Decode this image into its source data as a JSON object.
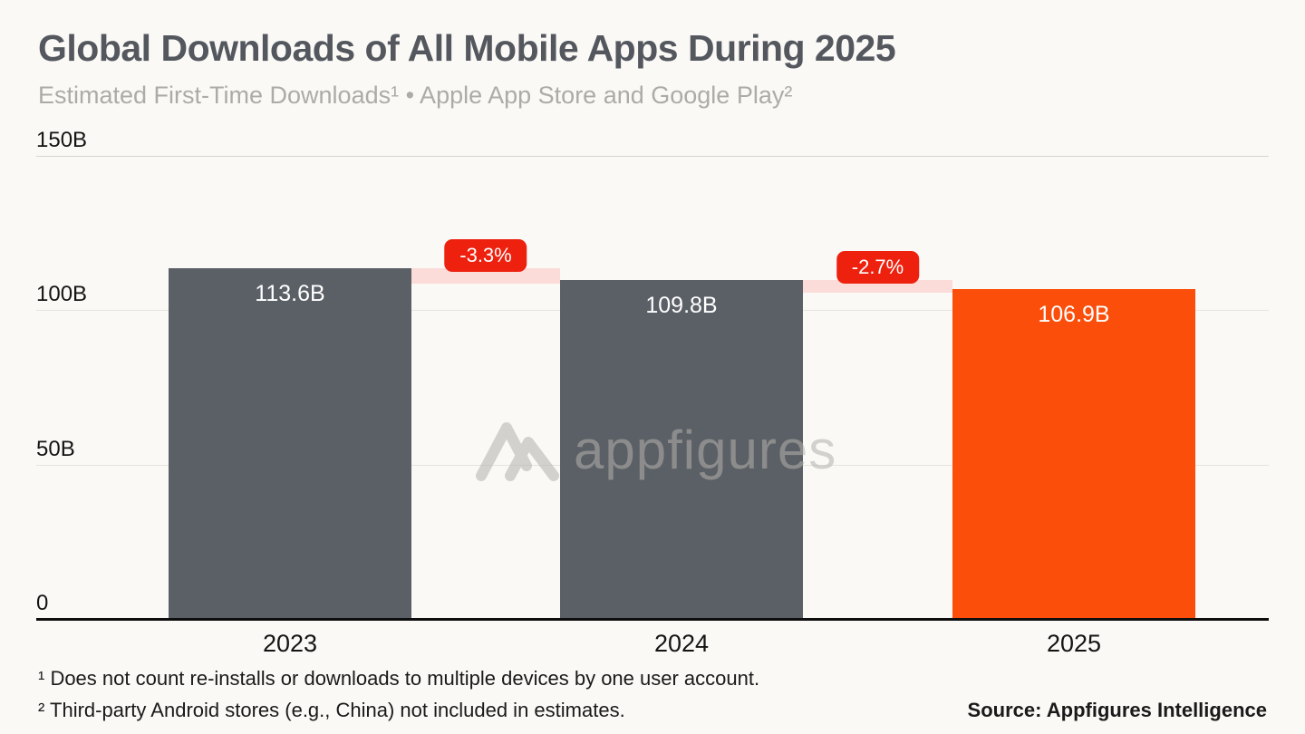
{
  "header": {
    "title": "Global Downloads of All Mobile Apps During 2025",
    "subtitle": "Estimated First-Time Downloads¹ • Apple App Store and Google Play²"
  },
  "chart_data": {
    "type": "bar",
    "title": "Global Downloads of All Mobile Apps During 2025",
    "categories": [
      "2023",
      "2024",
      "2025"
    ],
    "values": [
      113.6,
      109.8,
      106.9
    ],
    "value_labels": [
      "113.6B",
      "109.8B",
      "106.9B"
    ],
    "unit": "billions of downloads",
    "ylim": [
      0,
      150
    ],
    "yticks": [
      {
        "value": 0,
        "label": "0"
      },
      {
        "value": 50,
        "label": "50B"
      },
      {
        "value": 100,
        "label": "100B"
      },
      {
        "value": 150,
        "label": "150B"
      }
    ],
    "bar_colors": [
      "#5B6066",
      "#5B6066",
      "#FB4E0A"
    ],
    "changes": [
      {
        "label": "-3.3%",
        "between": [
          0,
          1
        ]
      },
      {
        "label": "-2.7%",
        "between": [
          1,
          2
        ]
      }
    ],
    "grid": true,
    "legend": false,
    "xlabel": "",
    "ylabel": ""
  },
  "watermark": {
    "text": "appfigures"
  },
  "footnotes": {
    "line1": "¹ Does not count re-installs or downloads to multiple devices by one user account.",
    "line2": "² Third-party Android stores (e.g., China) not included in estimates."
  },
  "source": "Source: Appfigures Intelligence",
  "colors": {
    "background": "#FAF9F6",
    "bar_gray": "#5B6066",
    "accent_orange": "#FB4E0A",
    "badge_red": "#EE200E",
    "band_pink": "#FBDCD9",
    "title_gray": "#54585E"
  }
}
